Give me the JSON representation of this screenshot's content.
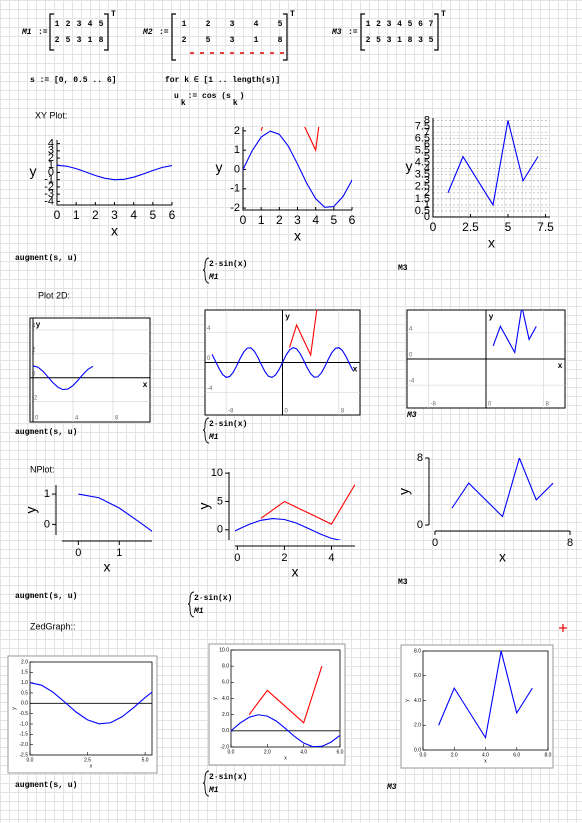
{
  "matrices": [
    {
      "name": "M1",
      "rows": [
        [
          1,
          2,
          3,
          4,
          5
        ],
        [
          2,
          5,
          3,
          1,
          8
        ]
      ]
    },
    {
      "name": "M2",
      "rows": [
        [
          1,
          2,
          3,
          4,
          5
        ],
        [
          2,
          5,
          3,
          1,
          8
        ]
      ]
    },
    {
      "name": "M3",
      "rows": [
        [
          1,
          2,
          3,
          4,
          5,
          6,
          7
        ],
        [
          2,
          5,
          3,
          1,
          8,
          3,
          5
        ]
      ]
    }
  ],
  "transpose": "T",
  "assign": ":=",
  "definitions": {
    "s": "s := [0, 0.5 .. 6]",
    "loop": "for k ∈ [1 .. length(s)]",
    "u": [
      "u",
      "k",
      " := cos (s",
      "k",
      ")"
    ]
  },
  "curves": {
    "u": {
      "x": [
        0,
        0.5,
        1,
        1.5,
        2,
        2.5,
        3,
        3.5,
        4,
        4.5,
        5,
        5.5,
        6
      ],
      "values": [
        1,
        0.88,
        0.54,
        0.07,
        -0.42,
        -0.8,
        -0.99,
        -0.94,
        -0.65,
        -0.21,
        0.28,
        0.71,
        0.96
      ]
    },
    "sin": {
      "x": [
        -10,
        -9.5,
        -9,
        -8.5,
        -8,
        -7.5,
        -7,
        -6.5,
        -6,
        -5.5,
        -5,
        -4.5,
        -4,
        -3.5,
        -3,
        -2.5,
        -2,
        -1.5,
        -1,
        -0.5,
        0,
        0.5,
        1,
        1.5,
        2,
        2.5,
        3,
        3.5,
        4,
        4.5,
        5,
        5.5,
        6,
        6.5,
        7,
        7.5,
        8,
        8.5,
        9,
        9.5,
        10
      ],
      "values": [
        1.09,
        0.15,
        -0.82,
        -1.6,
        -1.98,
        -1.88,
        -1.31,
        -0.43,
        0.56,
        1.41,
        1.92,
        1.96,
        1.51,
        0.7,
        -0.28,
        -1.2,
        -1.82,
        -1.99,
        -1.68,
        -0.96,
        0,
        0.96,
        1.68,
        1.99,
        1.82,
        1.2,
        0.28,
        -0.7,
        -1.51,
        -1.96,
        -1.92,
        -1.41,
        -0.56,
        0.43,
        1.31,
        1.88,
        1.98,
        1.6,
        0.82,
        -0.15,
        -1.09
      ]
    }
  },
  "sections": [
    {
      "label": "XY Plot:",
      "captions": {
        "left": "augment(s, u)",
        "middle": [
          "2·sin(x)",
          "M1"
        ],
        "right": "M3"
      },
      "charts": [
        {
          "type": "line",
          "style": "xy",
          "xlabel": "x",
          "ylabel": "y",
          "xlim": [
            0,
            6
          ],
          "ylim": [
            -4.5,
            4.5
          ],
          "xticks": [
            0,
            1,
            2,
            3,
            4,
            5,
            6
          ],
          "yticks": [
            -4,
            -3,
            -2,
            -1,
            0,
            1,
            2,
            3,
            4
          ],
          "grid": false,
          "colors": [
            "#0000ff"
          ]
        },
        {
          "type": "line",
          "style": "xy",
          "xlabel": "x",
          "ylabel": "y",
          "xlim": [
            0,
            6
          ],
          "ylim": [
            -2.1,
            2.2
          ],
          "xticks": [
            0,
            1,
            2,
            3,
            4,
            5,
            6
          ],
          "yticks": [
            -2,
            -1,
            0,
            1,
            2
          ],
          "grid": false,
          "colors": [
            "#0000ff",
            "#ff0000"
          ]
        },
        {
          "type": "line",
          "style": "xy",
          "xlabel": "x",
          "ylabel": "y",
          "xlim": [
            0,
            7.8
          ],
          "ylim": [
            0,
            8.2
          ],
          "xticks": [
            0,
            2.5,
            5,
            7.5
          ],
          "yticks": [
            0,
            0.5,
            1,
            1.5,
            2,
            2.5,
            3,
            3.5,
            4,
            4.5,
            5,
            5.5,
            6,
            6.5,
            7,
            7.5,
            8
          ],
          "grid": true,
          "colors": [
            "#0000ff"
          ]
        }
      ]
    },
    {
      "label": "Plot 2D:",
      "captions": {
        "left": "augment(s, u)",
        "middle": [
          "2·sin(x)",
          "M1"
        ],
        "right": "M3"
      },
      "charts": [
        {
          "type": "line",
          "style": "plot2d",
          "xlabel": "x",
          "ylabel": "y",
          "xlim": [
            -0.3,
            11.7
          ],
          "ylim": [
            -3.7,
            5
          ],
          "xticks": [
            0,
            4,
            8
          ],
          "yticks": [
            -2,
            0,
            2,
            4
          ],
          "grid": true,
          "colors": [
            "#0000ff"
          ]
        },
        {
          "type": "line",
          "style": "plot2d",
          "xlabel": "x",
          "ylabel": "y",
          "xlim": [
            -11,
            11
          ],
          "ylim": [
            -7,
            7
          ],
          "xticks": [
            -8,
            0,
            8
          ],
          "yticks": [
            -4,
            0,
            4
          ],
          "grid": true,
          "colors": [
            "#0000ff",
            "#ff0000"
          ]
        },
        {
          "type": "line",
          "style": "plot2d",
          "xlabel": "x",
          "ylabel": "y",
          "xlim": [
            -11,
            11
          ],
          "ylim": [
            -7.5,
            7.5
          ],
          "xticks": [
            -8,
            0,
            8
          ],
          "yticks": [
            -4,
            0,
            4
          ],
          "grid": true,
          "colors": [
            "#0000ff"
          ]
        }
      ]
    },
    {
      "label": "NPlot:",
      "captions": {
        "left": "augment(s, u)",
        "middle": [
          "2·sin(x)",
          "M1"
        ],
        "right": "M3"
      },
      "charts": [
        {
          "type": "line",
          "style": "nplot",
          "xlabel": "x",
          "ylabel": "y",
          "xlim": [
            -0.4,
            1.8
          ],
          "ylim": [
            -0.35,
            1.3
          ],
          "xticks": [
            0,
            1
          ],
          "yticks": [
            0,
            1
          ],
          "grid": false,
          "colors": [
            "#0000ff"
          ]
        },
        {
          "type": "line",
          "style": "nplot",
          "xlabel": "x",
          "ylabel": "y",
          "xlim": [
            -0.1,
            5
          ],
          "ylim": [
            -1.8,
            10.2
          ],
          "xticks": [
            0,
            2,
            4
          ],
          "yticks": [
            0,
            5,
            10
          ],
          "grid": false,
          "colors": [
            "#0000ff",
            "#ff0000"
          ]
        },
        {
          "type": "line",
          "style": "nplot",
          "xlabel": "x",
          "ylabel": "y",
          "xlim": [
            0,
            8
          ],
          "ylim": [
            0,
            8
          ],
          "xticks": [
            0,
            8
          ],
          "yticks": [
            0,
            8
          ],
          "grid": false,
          "colors": [
            "#0000ff"
          ]
        }
      ]
    },
    {
      "label": "ZedGraph::",
      "captions": {
        "left": "augment(s, u)",
        "middle": [
          "2·sin(x)",
          "M1"
        ],
        "right": "M3"
      },
      "charts": [
        {
          "type": "line",
          "style": "zed",
          "xlabel": "x",
          "ylabel": "y",
          "xlim": [
            0,
            5.3
          ],
          "ylim": [
            -2.5,
            2
          ],
          "xticks": [
            {
              "value": 0,
              "label": "0.0"
            },
            2.5,
            {
              "value": 5,
              "label": "5.0"
            }
          ],
          "yticks": [
            -2.5,
            {
              "value": -2,
              "label": "-2.0"
            },
            -1.5,
            {
              "value": -1,
              "label": "-1.0"
            },
            -0.5,
            {
              "value": 0,
              "label": "0.0"
            },
            0.5,
            {
              "value": 1,
              "label": "1.0"
            },
            1.5,
            {
              "value": 2,
              "label": "2.0"
            }
          ],
          "grid": false,
          "colors": [
            "#0000ff"
          ]
        },
        {
          "type": "line",
          "style": "zed",
          "xlabel": "x",
          "ylabel": "y",
          "xlim": [
            0,
            6
          ],
          "ylim": [
            -2,
            10
          ],
          "xticks": [
            {
              "value": 0,
              "label": "0.0"
            },
            {
              "value": 2,
              "label": "2.0"
            },
            {
              "value": 4,
              "label": "4.0"
            },
            {
              "value": 6,
              "label": "6.0"
            }
          ],
          "yticks": [
            {
              "value": -2,
              "label": "-2.0"
            },
            {
              "value": 0,
              "label": "0.0"
            },
            {
              "value": 2,
              "label": "2.0"
            },
            {
              "value": 4,
              "label": "4.0"
            },
            {
              "value": 6,
              "label": "6.0"
            },
            {
              "value": 8,
              "label": "8.0"
            },
            {
              "value": 10,
              "label": "10.0"
            }
          ],
          "grid": false,
          "colors": [
            "#0000ff",
            "#ff0000"
          ]
        },
        {
          "type": "line",
          "style": "zed",
          "xlabel": "x",
          "ylabel": "y",
          "xlim": [
            0,
            8
          ],
          "ylim": [
            0,
            8
          ],
          "xticks": [
            {
              "value": 0,
              "label": "0.0"
            },
            {
              "value": 2,
              "label": "2.0"
            },
            {
              "value": 4,
              "label": "4.0"
            },
            {
              "value": 6,
              "label": "6.0"
            },
            {
              "value": 8,
              "label": "8.0"
            }
          ],
          "yticks": [
            {
              "value": 0,
              "label": "0.0"
            },
            {
              "value": 2,
              "label": "2.0"
            },
            {
              "value": 4,
              "label": "4.0"
            },
            {
              "value": 6,
              "label": "6.0"
            },
            {
              "value": 8,
              "label": "8.0"
            }
          ],
          "grid": false,
          "colors": [
            "#0000ff"
          ]
        }
      ]
    }
  ]
}
